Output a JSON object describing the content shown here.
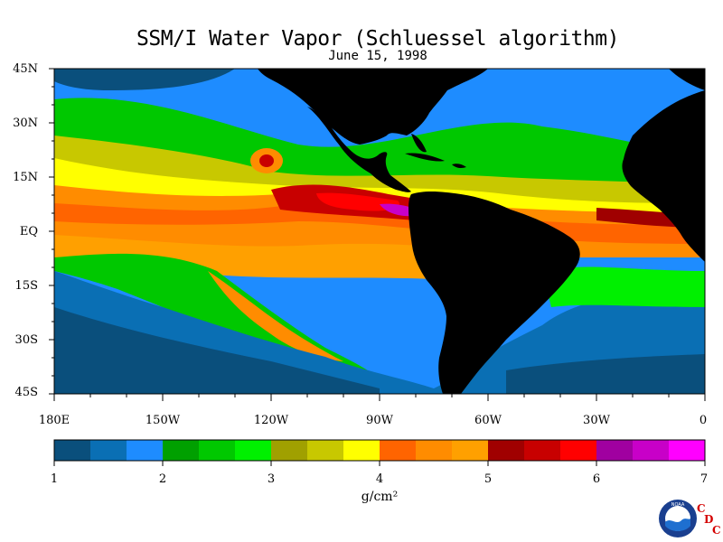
{
  "title": "SSM/I Water Vapor (Schluessel algorithm)",
  "date": "June 15, 1998",
  "lat_labels": [
    "45N",
    "30N",
    "15N",
    "EQ",
    "15S",
    "30S",
    "45S"
  ],
  "lon_labels": [
    "180E",
    "150W",
    "120W",
    "90W",
    "60W",
    "30W",
    "0"
  ],
  "colorbar": {
    "ticks": [
      "1",
      "2",
      "3",
      "4",
      "5",
      "6",
      "7"
    ],
    "unit": "g/cm²",
    "min": 1,
    "max": 7,
    "colors": [
      "#0a4f7c",
      "#0a6fb4",
      "#1e8cff",
      "#00a000",
      "#00c800",
      "#00f000",
      "#a0a000",
      "#c8c800",
      "#ffff00",
      "#ff6400",
      "#ff8c00",
      "#ffa000",
      "#a00000",
      "#c80000",
      "#ff0000",
      "#a000a0",
      "#c800c8",
      "#ff00ff"
    ]
  },
  "colors": {
    "land": "#000000",
    "ocean_dry": "#0a4f7c",
    "ocean_mid": "#1e8cff",
    "tropical_peak": "#c80000"
  },
  "credit": {
    "noaa_logo_text": "NOAA",
    "cdc_letters": [
      "C",
      "D",
      "C"
    ]
  }
}
